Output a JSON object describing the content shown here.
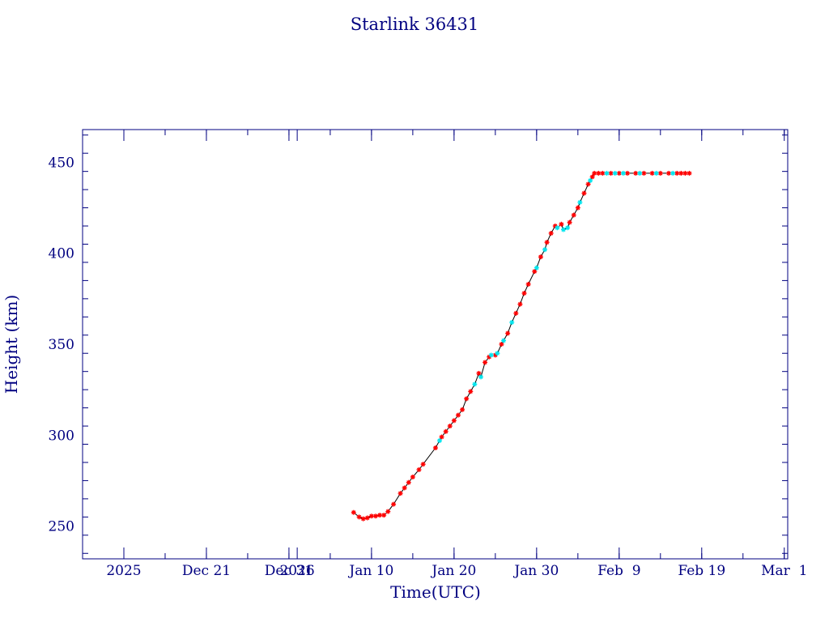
{
  "chart_data": {
    "type": "scatter",
    "title": "Starlink 36431",
    "xlabel": "Time(UTC)",
    "ylabel": "Height (km)",
    "x_ticks": [
      {
        "date": "2025-12-11",
        "label": "2025"
      },
      {
        "date": "2025-12-21",
        "label": "Dec 21"
      },
      {
        "date": "2025-12-31",
        "label": "Dec 31"
      },
      {
        "date": "2026-01-01",
        "label": "2026"
      },
      {
        "date": "2026-01-10",
        "label": "Jan 10"
      },
      {
        "date": "2026-01-20",
        "label": "Jan 20"
      },
      {
        "date": "2026-01-30",
        "label": "Jan 30"
      },
      {
        "date": "2026-02-09",
        "label": "Feb  9"
      },
      {
        "date": "2026-02-19",
        "label": "Feb 19"
      },
      {
        "date": "2026-03-01",
        "label": "Mar  1"
      }
    ],
    "y_ticks": [
      250,
      300,
      350,
      400,
      450
    ],
    "xlim": [
      "2025-12-06",
      "2026-03-01T10:00"
    ],
    "ylim": [
      232,
      468
    ],
    "colors": {
      "axes": "#000080",
      "line": "#000000",
      "series_red": "#ff0000",
      "series_cyan": "#00e5ee"
    },
    "series": [
      {
        "marker": "x",
        "color": "#ff0000",
        "points": [
          [
            "2026-01-07T20:00",
            257.5
          ],
          [
            "2026-01-08T12:00",
            255
          ],
          [
            "2026-01-09T00:00",
            254
          ],
          [
            "2026-01-09T12:00",
            254.5
          ],
          [
            "2026-01-10T00:00",
            255.5
          ],
          [
            "2026-01-10T12:00",
            255.5
          ],
          [
            "2026-01-11T00:00",
            256
          ],
          [
            "2026-01-11T12:00",
            256
          ],
          [
            "2026-01-12T00:00",
            258
          ],
          [
            "2026-01-12T16:00",
            262
          ],
          [
            "2026-01-13T12:00",
            268
          ],
          [
            "2026-01-14T00:00",
            271
          ],
          [
            "2026-01-14T12:00",
            274
          ],
          [
            "2026-01-15T00:00",
            277
          ],
          [
            "2026-01-15T18:00",
            281
          ],
          [
            "2026-01-16T06:00",
            284
          ],
          [
            "2026-01-17T18:00",
            293
          ],
          [
            "2026-01-18T12:00",
            299
          ],
          [
            "2026-01-19T00:00",
            302
          ],
          [
            "2026-01-19T12:00",
            305
          ],
          [
            "2026-01-20T00:00",
            308
          ],
          [
            "2026-01-20T12:00",
            311
          ],
          [
            "2026-01-21T00:00",
            314
          ],
          [
            "2026-01-21T12:00",
            320
          ],
          [
            "2026-01-22T00:00",
            324
          ],
          [
            "2026-01-23T00:00",
            334
          ],
          [
            "2026-01-23T18:00",
            340
          ],
          [
            "2026-01-24T06:00",
            343
          ],
          [
            "2026-01-25T00:00",
            344
          ],
          [
            "2026-01-25T18:00",
            350
          ],
          [
            "2026-01-26T12:00",
            356
          ],
          [
            "2026-01-27T12:00",
            367
          ],
          [
            "2026-01-28T00:00",
            372
          ],
          [
            "2026-01-28T12:00",
            378
          ],
          [
            "2026-01-29T00:00",
            383
          ],
          [
            "2026-01-29T18:00",
            390
          ],
          [
            "2026-01-30T12:00",
            398
          ],
          [
            "2026-01-31T06:00",
            406
          ],
          [
            "2026-01-31T18:00",
            411
          ],
          [
            "2026-02-01T06:00",
            415
          ],
          [
            "2026-02-02T00:00",
            416
          ],
          [
            "2026-02-03T00:00",
            417
          ],
          [
            "2026-02-03T12:00",
            421
          ],
          [
            "2026-02-04T00:00",
            425
          ],
          [
            "2026-02-04T18:00",
            433
          ],
          [
            "2026-02-05T06:00",
            438
          ],
          [
            "2026-02-05T18:00",
            442
          ],
          [
            "2026-02-06T00:00",
            444
          ],
          [
            "2026-02-06T12:00",
            444
          ],
          [
            "2026-02-07T00:00",
            444
          ],
          [
            "2026-02-08T00:00",
            444
          ],
          [
            "2026-02-09T00:00",
            444
          ],
          [
            "2026-02-10T00:00",
            444
          ],
          [
            "2026-02-11T00:00",
            444
          ],
          [
            "2026-02-12T00:00",
            444
          ],
          [
            "2026-02-13T00:00",
            444
          ],
          [
            "2026-02-14T00:00",
            444
          ],
          [
            "2026-02-15T00:00",
            444
          ],
          [
            "2026-02-16T00:00",
            444
          ],
          [
            "2026-02-16T12:00",
            444
          ],
          [
            "2026-02-17T00:00",
            444
          ],
          [
            "2026-02-17T12:00",
            444
          ]
        ]
      },
      {
        "marker": "x",
        "color": "#00e5ee",
        "points": [
          [
            "2026-01-18T06:00",
            297
          ],
          [
            "2026-01-22T12:00",
            328
          ],
          [
            "2026-01-23T06:00",
            332
          ],
          [
            "2026-01-24T12:00",
            344
          ],
          [
            "2026-01-25T06:00",
            345
          ],
          [
            "2026-01-26T00:00",
            352
          ],
          [
            "2026-01-27T00:00",
            362
          ],
          [
            "2026-01-30T00:00",
            392
          ],
          [
            "2026-01-31T00:00",
            402
          ],
          [
            "2026-02-01T12:00",
            414
          ],
          [
            "2026-02-02T06:00",
            413
          ],
          [
            "2026-02-02T18:00",
            414
          ],
          [
            "2026-02-04T06:00",
            428
          ],
          [
            "2026-02-05T12:00",
            440
          ],
          [
            "2026-02-07T12:00",
            444
          ],
          [
            "2026-02-08T12:00",
            444
          ],
          [
            "2026-02-09T12:00",
            444
          ],
          [
            "2026-02-11T12:00",
            444
          ],
          [
            "2026-02-13T12:00",
            444
          ],
          [
            "2026-02-15T12:00",
            444
          ]
        ]
      }
    ]
  }
}
